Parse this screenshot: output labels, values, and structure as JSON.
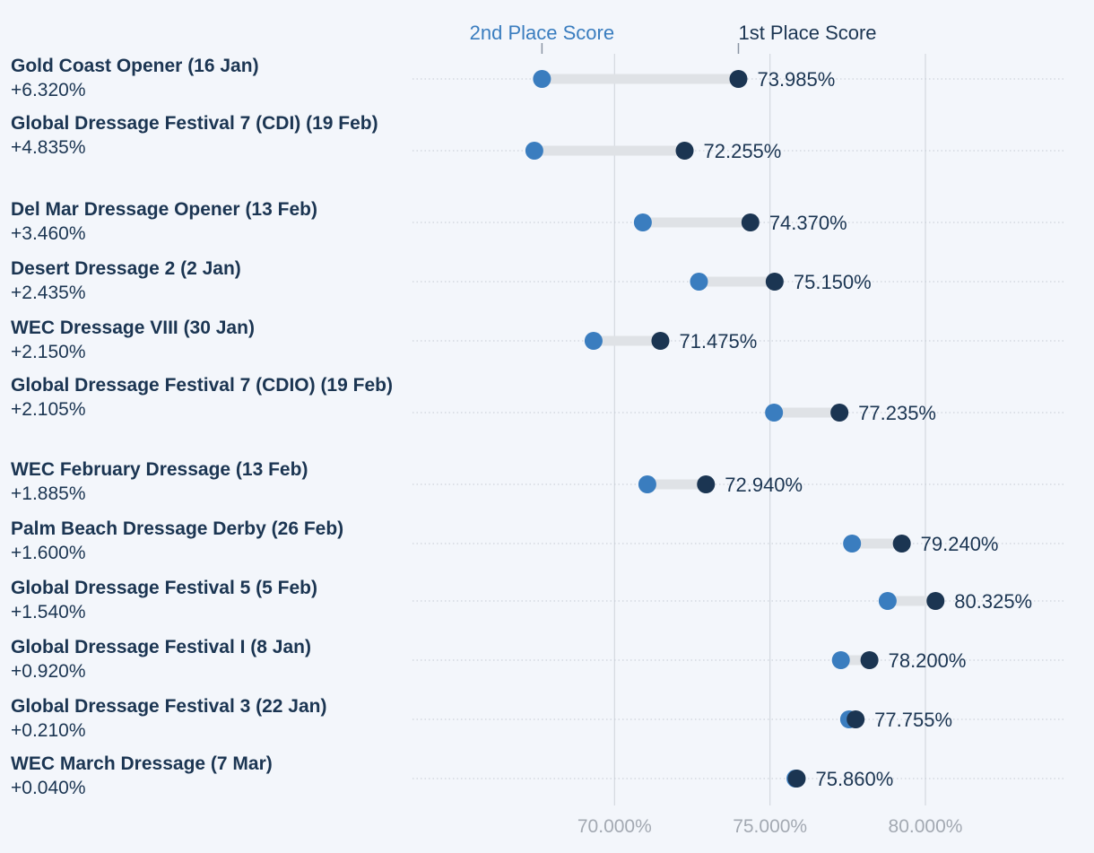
{
  "legend": {
    "second": {
      "label": "2nd Place Score",
      "color": "#3a7dbf"
    },
    "first": {
      "label": "1st Place Score",
      "color": "#1b3552"
    }
  },
  "chart_data": {
    "type": "dumbbell",
    "x_axis": {
      "min": 63.5,
      "max": 84.5,
      "ticks": [
        70,
        75,
        80
      ],
      "tick_labels": [
        "70.000%",
        "75.000%",
        "80.000%"
      ]
    },
    "series": [
      {
        "name": "2nd Place Score",
        "key": "second"
      },
      {
        "name": "1st Place Score",
        "key": "first"
      }
    ],
    "rows": [
      {
        "event": "Gold Coast Opener (16 Jan)",
        "difference": "+6.320%",
        "first": 73.985,
        "second": 67.665,
        "first_label": "73.985%"
      },
      {
        "event": "Global Dressage Festival 7 (CDI) (19 Feb)",
        "difference": "+4.835%",
        "first": 72.255,
        "second": 67.42,
        "first_label": "72.255%"
      },
      {
        "event": "Del Mar Dressage Opener (13 Feb)",
        "difference": "+3.460%",
        "first": 74.37,
        "second": 70.91,
        "first_label": "74.370%"
      },
      {
        "event": "Desert Dressage 2 (2 Jan)",
        "difference": "+2.435%",
        "first": 75.15,
        "second": 72.715,
        "first_label": "75.150%"
      },
      {
        "event": "WEC Dressage VIII (30 Jan)",
        "difference": "+2.150%",
        "first": 71.475,
        "second": 69.325,
        "first_label": "71.475%"
      },
      {
        "event": "Global Dressage Festival 7 (CDIO) (19 Feb)",
        "difference": "+2.105%",
        "first": 77.235,
        "second": 75.13,
        "first_label": "77.235%"
      },
      {
        "event": "WEC February Dressage (13 Feb)",
        "difference": "+1.885%",
        "first": 72.94,
        "second": 71.055,
        "first_label": "72.940%"
      },
      {
        "event": "Palm Beach Dressage Derby (26 Feb)",
        "difference": "+1.600%",
        "first": 79.24,
        "second": 77.64,
        "first_label": "79.240%"
      },
      {
        "event": "Global Dressage Festival 5 (5 Feb)",
        "difference": "+1.540%",
        "first": 80.325,
        "second": 78.785,
        "first_label": "80.325%"
      },
      {
        "event": "Global Dressage Festival I (8 Jan)",
        "difference": "+0.920%",
        "first": 78.2,
        "second": 77.28,
        "first_label": "78.200%"
      },
      {
        "event": "Global Dressage Festival 3 (22 Jan)",
        "difference": "+0.210%",
        "first": 77.755,
        "second": 77.545,
        "first_label": "77.755%"
      },
      {
        "event": "WEC March Dressage (7 Mar)",
        "difference": "+0.040%",
        "first": 75.86,
        "second": 75.82,
        "first_label": "75.860%"
      }
    ]
  }
}
